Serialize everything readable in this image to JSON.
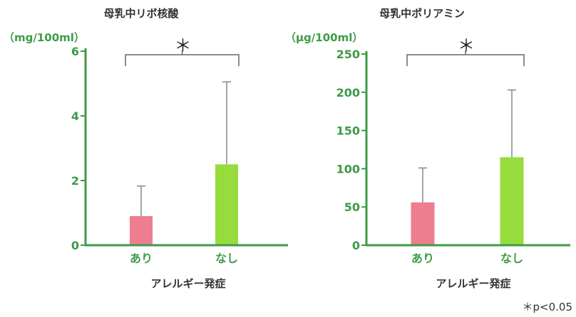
{
  "colors": {
    "axis": "#3e9b47",
    "ari": "#ee7d90",
    "nashi": "#96dc3c",
    "error": "#888888",
    "bracket": "#666666"
  },
  "footnote": "＊p<0.05",
  "chart_data": [
    {
      "type": "bar",
      "title": "母乳中リボ核酸",
      "unit": "（mg/100ml）",
      "xlabel": "アレルギー発症",
      "categories": [
        "あり",
        "なし"
      ],
      "values": [
        0.9,
        2.5
      ],
      "error": [
        0.93,
        2.55
      ],
      "ylim": [
        0,
        6
      ],
      "yticks": [
        "0",
        "2",
        "4",
        "6"
      ],
      "significance": "＊"
    },
    {
      "type": "bar",
      "title": "母乳中ポリアミン",
      "unit": "（μg/100ml）",
      "xlabel": "アレルギー発症",
      "categories": [
        "あり",
        "なし"
      ],
      "values": [
        56,
        115
      ],
      "error": [
        45,
        88
      ],
      "ylim": [
        0,
        250
      ],
      "yticks": [
        "0",
        "50",
        "100",
        "150",
        "200",
        "250"
      ],
      "significance": "＊"
    }
  ]
}
